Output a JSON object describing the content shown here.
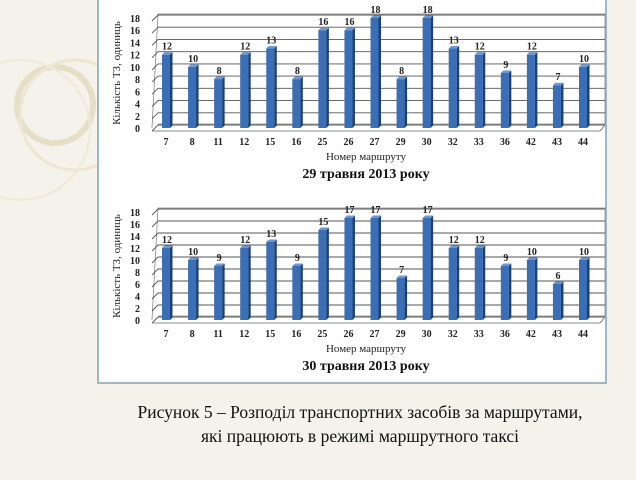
{
  "chart_data": [
    {
      "type": "bar",
      "title": "29 травня 2013 року",
      "xlabel": "Номер маршруту",
      "ylabel": "Кількість ТЗ, одиниць",
      "categories": [
        "7",
        "8",
        "11",
        "12",
        "15",
        "16",
        "25",
        "26",
        "27",
        "29",
        "30",
        "32",
        "33",
        "36",
        "42",
        "43",
        "44"
      ],
      "values": [
        12,
        10,
        8,
        12,
        13,
        8,
        16,
        16,
        18,
        8,
        18,
        13,
        12,
        9,
        12,
        7,
        10
      ],
      "ylim": [
        0,
        18
      ],
      "yticks": [
        0,
        2,
        4,
        6,
        8,
        10,
        12,
        14,
        16,
        18
      ],
      "grid": true,
      "bar_color": "#3a6fb8"
    },
    {
      "type": "bar",
      "title": "30 травня 2013 року",
      "xlabel": "Номер маршруту",
      "ylabel": "Кількість ТЗ, одиниць",
      "categories": [
        "7",
        "8",
        "11",
        "12",
        "15",
        "16",
        "25",
        "26",
        "27",
        "29",
        "30",
        "32",
        "33",
        "36",
        "42",
        "43",
        "44"
      ],
      "values": [
        12,
        10,
        9,
        12,
        13,
        9,
        15,
        17,
        17,
        7,
        17,
        12,
        12,
        9,
        10,
        6,
        10
      ],
      "ylim": [
        0,
        18
      ],
      "yticks": [
        0,
        2,
        4,
        6,
        8,
        10,
        12,
        14,
        16,
        18
      ],
      "grid": true,
      "bar_color": "#3a6fb8"
    }
  ],
  "caption": {
    "line1": "Рисунок 5 – Розподіл транспортних засобів за маршрутами,",
    "line2": "які працюють в режимі маршрутного таксі"
  }
}
